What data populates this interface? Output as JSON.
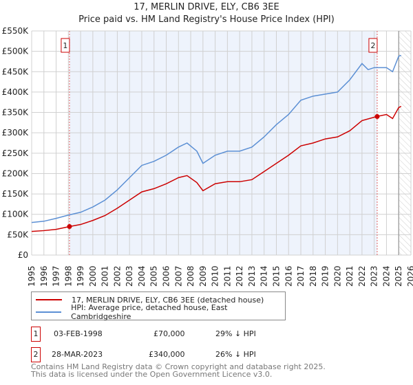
{
  "chart_data": {
    "type": "line",
    "title": "17, MERLIN DRIVE, ELY, CB6 3EE",
    "subtitle": "Price paid vs. HM Land Registry's House Price Index (HPI)",
    "xlim": [
      1995,
      2026
    ],
    "ylim": [
      0,
      550000
    ],
    "x_ticks": [
      "1995",
      "1996",
      "1997",
      "1998",
      "1999",
      "2000",
      "2001",
      "2002",
      "2003",
      "2004",
      "2005",
      "2006",
      "2007",
      "2008",
      "2009",
      "2010",
      "2011",
      "2012",
      "2013",
      "2014",
      "2015",
      "2016",
      "2017",
      "2018",
      "2019",
      "2020",
      "2021",
      "2022",
      "2023",
      "2024",
      "2025",
      "2026"
    ],
    "y_ticks": [
      {
        "v": 0,
        "label": "£0"
      },
      {
        "v": 50000,
        "label": "£50K"
      },
      {
        "v": 100000,
        "label": "£100K"
      },
      {
        "v": 150000,
        "label": "£150K"
      },
      {
        "v": 200000,
        "label": "£200K"
      },
      {
        "v": 250000,
        "label": "£250K"
      },
      {
        "v": 300000,
        "label": "£300K"
      },
      {
        "v": 350000,
        "label": "£350K"
      },
      {
        "v": 400000,
        "label": "£400K"
      },
      {
        "v": 450000,
        "label": "£450K"
      },
      {
        "v": 500000,
        "label": "£500K"
      },
      {
        "v": 550000,
        "label": "£550K"
      }
    ],
    "grid": true,
    "series": [
      {
        "name": "17, MERLIN DRIVE, ELY, CB6 3EE (detached house)",
        "color": "#cc0000",
        "x": [
          1995,
          1996,
          1997,
          1998.1,
          1999,
          2000,
          2001,
          2002,
          2003,
          2004,
          2005,
          2006,
          2007,
          2007.7,
          2008.5,
          2009,
          2010,
          2011,
          2012,
          2013,
          2014,
          2015,
          2016,
          2017,
          2018,
          2019,
          2020,
          2021,
          2022,
          2023.2,
          2024,
          2024.5,
          2025,
          2025.2
        ],
        "values": [
          58000,
          60000,
          63000,
          70000,
          75000,
          85000,
          97000,
          115000,
          135000,
          155000,
          163000,
          175000,
          190000,
          195000,
          178000,
          158000,
          175000,
          180000,
          180000,
          185000,
          205000,
          225000,
          245000,
          268000,
          275000,
          285000,
          290000,
          305000,
          330000,
          340000,
          345000,
          335000,
          362000,
          365000
        ]
      },
      {
        "name": "HPI: Average price, detached house, East Cambridgeshire",
        "color": "#5b8fd4",
        "x": [
          1995,
          1996,
          1997,
          1998,
          1999,
          2000,
          2001,
          2002,
          2003,
          2004,
          2005,
          2006,
          2007,
          2007.7,
          2008.5,
          2009,
          2010,
          2011,
          2012,
          2013,
          2014,
          2015,
          2016,
          2017,
          2018,
          2019,
          2020,
          2021,
          2022,
          2022.5,
          2023,
          2024,
          2024.5,
          2025,
          2025.2
        ],
        "values": [
          80000,
          83000,
          90000,
          98000,
          105000,
          118000,
          135000,
          160000,
          190000,
          220000,
          230000,
          245000,
          265000,
          275000,
          255000,
          225000,
          245000,
          255000,
          255000,
          265000,
          290000,
          320000,
          345000,
          380000,
          390000,
          395000,
          400000,
          430000,
          470000,
          455000,
          460000,
          460000,
          450000,
          488000,
          490000
        ]
      }
    ],
    "annotations": [
      {
        "label": "1",
        "x": 1998.09,
        "value": 70000
      },
      {
        "label": "2",
        "x": 2023.24,
        "value": 340000
      }
    ],
    "shaded_range": [
      1998.09,
      2023.24
    ],
    "hatched_from": 2025.0,
    "legend_position": "bottom"
  },
  "table": [
    {
      "num": "1",
      "date": "03-FEB-1998",
      "price": "£70,000",
      "hpi": "29% ↓ HPI"
    },
    {
      "num": "2",
      "date": "28-MAR-2023",
      "price": "£340,000",
      "hpi": "26% ↓ HPI"
    }
  ],
  "footer": {
    "line1": "Contains HM Land Registry data © Crown copyright and database right 2025.",
    "line2": "This data is licensed under the Open Government Licence v3.0."
  }
}
